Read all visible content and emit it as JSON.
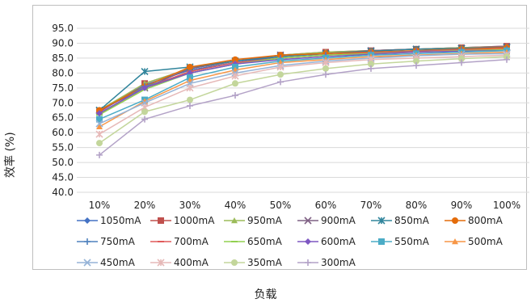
{
  "chart_data": {
    "type": "line",
    "xlabel": "负载",
    "ylabel": "效率 (%)",
    "categories": [
      "10%",
      "20%",
      "30%",
      "40%",
      "50%",
      "60%",
      "70%",
      "80%",
      "90%",
      "100%"
    ],
    "ylim": [
      40.0,
      95.0
    ],
    "yticks": [
      "40.0",
      "45.0",
      "50.0",
      "55.0",
      "60.0",
      "65.0",
      "70.0",
      "75.0",
      "80.0",
      "85.0",
      "90.0",
      "95.0"
    ],
    "grid": true,
    "legend": "bottom",
    "series": [
      {
        "name": "1050mA",
        "color": "#4472C4",
        "marker": "diamond",
        "values": [
          67.0,
          76.0,
          81.0,
          83.5,
          85.5,
          86.5,
          87.5,
          88.0,
          88.5,
          89.0
        ]
      },
      {
        "name": "1000mA",
        "color": "#C0504D",
        "marker": "square",
        "values": [
          67.0,
          76.5,
          81.5,
          84.0,
          86.0,
          87.0,
          87.5,
          88.0,
          88.5,
          89.0
        ]
      },
      {
        "name": "950mA",
        "color": "#9BBB59",
        "marker": "triangle",
        "values": [
          67.5,
          76.5,
          81.5,
          84.0,
          86.0,
          87.0,
          87.5,
          88.0,
          88.5,
          88.8
        ]
      },
      {
        "name": "900mA",
        "color": "#7F6084",
        "marker": "x",
        "values": [
          67.5,
          75.0,
          81.5,
          84.0,
          86.0,
          86.5,
          87.5,
          88.0,
          88.3,
          88.8
        ]
      },
      {
        "name": "850mA",
        "color": "#31859C",
        "marker": "star",
        "values": [
          67.5,
          80.5,
          82.0,
          84.0,
          85.5,
          86.5,
          87.3,
          88.0,
          88.2,
          88.5
        ]
      },
      {
        "name": "800mA",
        "color": "#E46C0A",
        "marker": "circle",
        "values": [
          67.5,
          75.5,
          82.0,
          84.5,
          86.0,
          86.5,
          87.0,
          87.5,
          88.0,
          88.5
        ]
      },
      {
        "name": "750mA",
        "color": "#4F81BD",
        "marker": "plus",
        "values": [
          66.0,
          75.5,
          80.0,
          83.0,
          85.0,
          86.0,
          86.8,
          87.3,
          87.8,
          88.0
        ]
      },
      {
        "name": "700mA",
        "color": "#E05A5A",
        "marker": "dash",
        "values": [
          66.5,
          75.0,
          80.5,
          83.5,
          85.0,
          86.0,
          86.8,
          87.2,
          87.8,
          88.0
        ]
      },
      {
        "name": "650mA",
        "color": "#92D050",
        "marker": "dash",
        "values": [
          66.0,
          74.5,
          80.0,
          83.0,
          85.0,
          86.0,
          86.5,
          87.0,
          87.5,
          87.8
        ]
      },
      {
        "name": "600mA",
        "color": "#7E57C2",
        "marker": "diamond",
        "values": [
          66.5,
          75.0,
          80.0,
          83.0,
          84.5,
          85.5,
          86.3,
          87.0,
          87.3,
          87.5
        ]
      },
      {
        "name": "550mA",
        "color": "#4BACC6",
        "marker": "square",
        "values": [
          64.5,
          71.0,
          78.5,
          82.0,
          84.0,
          85.0,
          86.0,
          86.5,
          87.0,
          87.5
        ]
      },
      {
        "name": "500mA",
        "color": "#F79646",
        "marker": "triangle",
        "values": [
          62.0,
          70.5,
          77.5,
          81.0,
          83.5,
          84.5,
          85.5,
          86.0,
          86.5,
          87.0
        ]
      },
      {
        "name": "450mA",
        "color": "#95B3D7",
        "marker": "x",
        "values": [
          63.0,
          70.0,
          76.5,
          80.0,
          82.5,
          84.0,
          85.0,
          85.8,
          86.3,
          86.5
        ]
      },
      {
        "name": "400mA",
        "color": "#E6B9B8",
        "marker": "star",
        "values": [
          59.5,
          68.5,
          75.0,
          79.0,
          82.0,
          83.5,
          84.5,
          85.0,
          85.5,
          86.0
        ]
      },
      {
        "name": "350mA",
        "color": "#C3D69B",
        "marker": "circle",
        "values": [
          56.5,
          67.0,
          71.0,
          76.5,
          79.5,
          81.5,
          83.0,
          84.0,
          84.8,
          85.5
        ]
      },
      {
        "name": "300mA",
        "color": "#B3A2C7",
        "marker": "plus",
        "values": [
          52.5,
          64.5,
          69.0,
          72.5,
          77.0,
          79.5,
          81.5,
          82.5,
          83.5,
          84.5
        ]
      }
    ]
  }
}
